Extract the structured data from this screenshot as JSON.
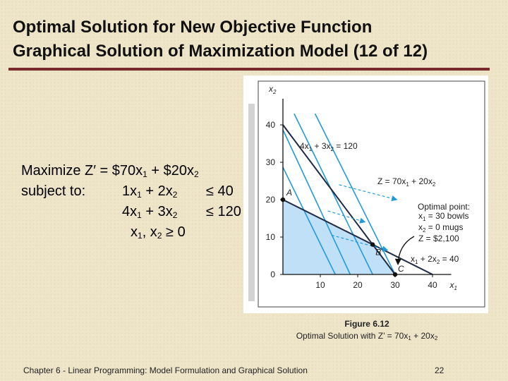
{
  "title": {
    "line1": "Optimal Solution for New Objective Function",
    "line2": "Graphical Solution of Maximization Model (12 of 12)"
  },
  "model": {
    "objective": {
      "prefix": "Maximize Z′ = $70x",
      "s1": "1",
      "mid": " + $20x",
      "s2": "2"
    },
    "subject_to": "subject to:",
    "constraint1": {
      "a": "1x",
      "s1": "1",
      "b": " + 2x",
      "s2": "2",
      "c": "≤ 40"
    },
    "constraint2": {
      "a": "4x",
      "s1": "1",
      "b": " + 3x",
      "s2": "2",
      "c": "≤ 120"
    },
    "nonneg": {
      "a": "x",
      "s1": "1",
      "b": ", x",
      "s2": "2",
      "c": " ≥ 0"
    }
  },
  "chart_data": {
    "type": "line",
    "x_axis": {
      "label": "x",
      "label_sub": "1",
      "range": [
        0,
        45
      ],
      "ticks": [
        "10",
        "20",
        "30",
        "40"
      ]
    },
    "y_axis": {
      "label": "x",
      "label_sub": "2",
      "range": [
        0,
        47
      ],
      "ticks": [
        "0",
        "10",
        "20",
        "30",
        "40"
      ]
    },
    "constraints": [
      {
        "points": [
          [
            0,
            20
          ],
          [
            40,
            0
          ]
        ],
        "equation": "x1 + 2x2 = 40"
      },
      {
        "points": [
          [
            0,
            40
          ],
          [
            30,
            0
          ]
        ],
        "equation": "4x1 + 3x2 = 120"
      }
    ],
    "objective_lines": [
      [
        [
          8.6,
          43
        ],
        [
          30,
          0
        ]
      ],
      [
        [
          3,
          43
        ],
        [
          24,
          0
        ]
      ],
      [
        [
          -2,
          43
        ],
        [
          18,
          0
        ]
      ],
      [
        [
          -7,
          43
        ],
        [
          14,
          0
        ]
      ]
    ],
    "feasible_region": [
      [
        0,
        0
      ],
      [
        0,
        20
      ],
      [
        24,
        8
      ],
      [
        30,
        0
      ]
    ],
    "points": [
      {
        "label": "A",
        "x": 0,
        "y": 20
      },
      {
        "label": "B",
        "x": 24,
        "y": 8
      },
      {
        "label": "C",
        "x": 30,
        "y": 0
      }
    ],
    "labels": {
      "constraint2": {
        "a": "4x",
        "s1": "1",
        "b": " + 3x",
        "s2": "2",
        "c": " = 120"
      },
      "objective": {
        "a": "Z = 70x",
        "s1": "1",
        "b": " + 20x",
        "s2": "2"
      },
      "constraint1": {
        "a": "x",
        "s1": "1",
        "b": " + 2x",
        "s2": "2",
        "c": " = 40"
      },
      "optimal_title": "Optimal point:",
      "opt_x1": {
        "a": "x",
        "s1": "1",
        "b": " = 30 bowls"
      },
      "opt_x2": {
        "a": "x",
        "s2": "2",
        "b": " = 0 mugs"
      },
      "opt_z": "Z = $2,100"
    }
  },
  "caption": {
    "label": "Figure 6.12",
    "text_a": "Optimal Solution with Z’ = 70x",
    "s1": "1",
    "text_b": " + 20x",
    "s2": "2"
  },
  "footer": "Chapter 6 - Linear Programming:  Model Formulation and Graphical Solution",
  "slide_number": "22",
  "colors": {
    "background": "#eee4c8",
    "title_rule": "#7a2a2a",
    "feasible_fill": "#bfe0f7",
    "objective_line": "#1f9bdc",
    "constraint_line": "#1f2a44"
  }
}
